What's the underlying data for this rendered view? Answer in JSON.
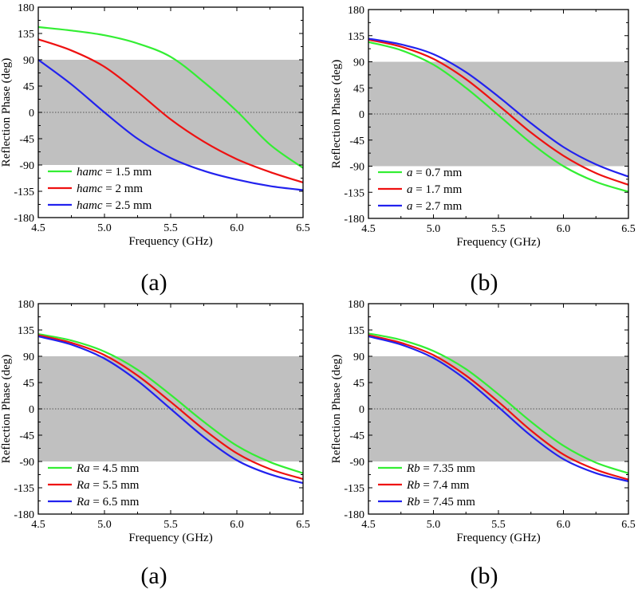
{
  "chart_data": [
    {
      "type": "line",
      "caption": "(a)",
      "xlabel": "Frequency (GHz)",
      "ylabel": "Reflection Phase (deg)",
      "xlim": [
        4.5,
        6.5
      ],
      "ylim": [
        -180,
        180
      ],
      "xticks": [
        "4.5",
        "5.0",
        "5.5",
        "6.0",
        "6.5"
      ],
      "yticks": [
        "180",
        "135",
        "90",
        "45",
        "0",
        "-45",
        "-90",
        "-135",
        "-180"
      ],
      "band": [
        -90,
        90
      ],
      "zero_line": true,
      "legend_position": "bottom-left",
      "x": [
        4.5,
        4.75,
        5.0,
        5.25,
        5.5,
        5.75,
        6.0,
        6.25,
        6.5
      ],
      "series": [
        {
          "var": "hamc",
          "value": " = 1.5 mm",
          "color": "#33ee33",
          "values": [
            146,
            140,
            132,
            118,
            95,
            52,
            2,
            -55,
            -95
          ]
        },
        {
          "var": "hamc",
          "value": " = 2 mm",
          "color": "#ee1111",
          "values": [
            125,
            106,
            78,
            35,
            -12,
            -50,
            -80,
            -102,
            -120
          ]
        },
        {
          "var": "hamc",
          "value": " = 2.5 mm",
          "color": "#2222ee",
          "values": [
            90,
            48,
            0,
            -45,
            -78,
            -100,
            -115,
            -126,
            -133
          ]
        }
      ]
    },
    {
      "type": "line",
      "caption": "(b)",
      "xlabel": "Frequency (GHz)",
      "ylabel": "Reflection Phase (deg)",
      "xlim": [
        4.5,
        6.5
      ],
      "ylim": [
        -180,
        180
      ],
      "xticks": [
        "4.5",
        "5.0",
        "5.5",
        "6.0",
        "6.5"
      ],
      "yticks": [
        "180",
        "135",
        "90",
        "45",
        "0",
        "-45",
        "-90",
        "-135",
        "-180"
      ],
      "band": [
        -90,
        90
      ],
      "zero_line": true,
      "legend_position": "bottom-left",
      "x": [
        4.5,
        4.75,
        5.0,
        5.25,
        5.5,
        5.75,
        6.0,
        6.25,
        6.5
      ],
      "series": [
        {
          "var": "a",
          "value": " = 0.7 mm",
          "color": "#33ee33",
          "values": [
            124,
            110,
            85,
            45,
            -2,
            -50,
            -90,
            -117,
            -134
          ]
        },
        {
          "var": "a",
          "value": " = 1.7 mm",
          "color": "#ee1111",
          "values": [
            128,
            116,
            95,
            60,
            15,
            -32,
            -72,
            -102,
            -122
          ]
        },
        {
          "var": "a",
          "value": " = 2.7 mm",
          "color": "#2222ee",
          "values": [
            130,
            120,
            103,
            72,
            30,
            -16,
            -57,
            -87,
            -108
          ]
        }
      ]
    },
    {
      "type": "line",
      "caption": "(a)",
      "xlabel": "Frequency (GHz)",
      "ylabel": "Reflection Phase (deg)",
      "xlim": [
        4.5,
        6.5
      ],
      "ylim": [
        -180,
        180
      ],
      "xticks": [
        "4.5",
        "5.0",
        "5.5",
        "6.0",
        "6.5"
      ],
      "yticks": [
        "180",
        "135",
        "90",
        "45",
        "0",
        "-45",
        "-90",
        "-135",
        "-180"
      ],
      "band": [
        -90,
        90
      ],
      "zero_line": true,
      "legend_position": "bottom-left",
      "x": [
        4.5,
        4.75,
        5.0,
        5.25,
        5.5,
        5.75,
        6.0,
        6.25,
        6.5
      ],
      "series": [
        {
          "var": "Ra",
          "value": " = 4.5 mm",
          "color": "#33ee33",
          "values": [
            128,
            117,
            98,
            67,
            24,
            -22,
            -63,
            -91,
            -110
          ]
        },
        {
          "var": "Ra",
          "value": " = 5.5 mm",
          "color": "#ee1111",
          "values": [
            126,
            113,
            92,
            57,
            12,
            -35,
            -76,
            -103,
            -120
          ]
        },
        {
          "var": "Ra",
          "value": " = 6.5 mm",
          "color": "#2222ee",
          "values": [
            124,
            110,
            86,
            48,
            0,
            -48,
            -88,
            -112,
            -127
          ]
        }
      ]
    },
    {
      "type": "line",
      "caption": "(b)",
      "xlabel": "Frequency (GHz)",
      "ylabel": "Reflection Phase (deg)",
      "xlim": [
        4.5,
        6.5
      ],
      "ylim": [
        -180,
        180
      ],
      "xticks": [
        "4.5",
        "5.0",
        "5.5",
        "6.0",
        "6.5"
      ],
      "yticks": [
        "180",
        "135",
        "90",
        "45",
        "0",
        "-45",
        "-90",
        "-135",
        "-180"
      ],
      "band": [
        -90,
        90
      ],
      "zero_line": true,
      "legend_position": "bottom-left",
      "x": [
        4.5,
        4.75,
        5.0,
        5.25,
        5.5,
        5.75,
        6.0,
        6.25,
        6.5
      ],
      "series": [
        {
          "var": "Rb",
          "value": " = 7.35 mm",
          "color": "#33ee33",
          "values": [
            129,
            118,
            99,
            68,
            25,
            -22,
            -63,
            -92,
            -110
          ]
        },
        {
          "var": "Rb",
          "value": " = 7.4 mm",
          "color": "#ee1111",
          "values": [
            126,
            113,
            92,
            57,
            12,
            -37,
            -78,
            -104,
            -121
          ]
        },
        {
          "var": "Rb",
          "value": " = 7.45 mm",
          "color": "#2222ee",
          "values": [
            124,
            110,
            87,
            50,
            3,
            -46,
            -86,
            -110,
            -124
          ]
        }
      ]
    }
  ]
}
